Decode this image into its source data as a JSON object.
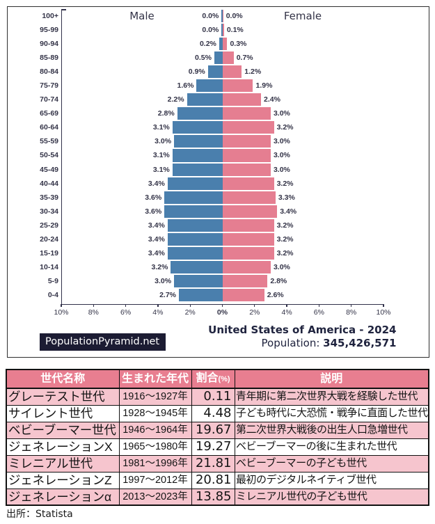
{
  "chart_data": {
    "type": "bar",
    "subtype": "population-pyramid",
    "title": "United States of America - 2024",
    "population_label": "Population: ",
    "population_value": "345,426,571",
    "brand": "PopulationPyramid.net",
    "left_header": "Male",
    "right_header": "Female",
    "categories": [
      "100+",
      "95-99",
      "90-94",
      "85-89",
      "80-84",
      "75-79",
      "70-74",
      "65-69",
      "60-64",
      "55-59",
      "50-54",
      "45-49",
      "40-44",
      "35-39",
      "30-34",
      "25-29",
      "20-24",
      "15-19",
      "10-14",
      "5-9",
      "0-4"
    ],
    "series": [
      {
        "name": "Male",
        "color": "#4A7FAD",
        "values": [
          0.0,
          0.0,
          0.2,
          0.5,
          0.9,
          1.6,
          2.2,
          2.8,
          3.1,
          3.0,
          3.1,
          3.1,
          3.4,
          3.6,
          3.6,
          3.4,
          3.4,
          3.4,
          3.2,
          3.0,
          2.7
        ]
      },
      {
        "name": "Female",
        "color": "#E57E91",
        "values": [
          0.0,
          0.1,
          0.3,
          0.7,
          1.2,
          1.9,
          2.4,
          3.0,
          3.2,
          3.0,
          3.0,
          3.0,
          3.2,
          3.3,
          3.4,
          3.2,
          3.2,
          3.2,
          3.0,
          2.8,
          2.6
        ]
      }
    ],
    "x_ticks": [
      "10%",
      "8%",
      "6%",
      "4%",
      "2%",
      "0%",
      "2%",
      "4%",
      "6%",
      "8%",
      "10%"
    ],
    "x_tick_values": [
      -10,
      -8,
      -6,
      -4,
      -2,
      0,
      2,
      4,
      6,
      8,
      10
    ],
    "xlim": [
      -10,
      10
    ],
    "value_suffix": "%"
  },
  "table": {
    "headers": [
      "世代名称",
      "生まれた年代",
      "割合",
      "説明"
    ],
    "ratio_unit": "(%)",
    "rows": [
      {
        "name": "グレーテスト世代",
        "years": "1916～1927年",
        "ratio": "0.11",
        "desc": "青年期に第二次世界大戦を経験した世代"
      },
      {
        "name": "サイレント世代",
        "years": "1928～1945年",
        "ratio": "4.48",
        "desc": "子ども時代に大恐慌・戦争に直面した世代"
      },
      {
        "name": "ベビーブーマー世代",
        "years": "1946～1964年",
        "ratio": "19.67",
        "desc": "第二次世界大戦後の出生人口急増世代"
      },
      {
        "name": "ジェネレーションX",
        "years": "1965～1980年",
        "ratio": "19.27",
        "desc": "ベビーブーマーの後に生まれた世代"
      },
      {
        "name": "ミレニアル世代",
        "years": "1981～1996年",
        "ratio": "21.81",
        "desc": "ベビーブーマーの子ども世代"
      },
      {
        "name": "ジェネレーションZ",
        "years": "1997～2012年",
        "ratio": "20.81",
        "desc": "最初のデジタルネイティブ世代"
      },
      {
        "name": "ジェネレーションα",
        "years": "2013～2023年",
        "ratio": "13.85",
        "desc": "ミレニアル世代の子ども世代"
      }
    ]
  },
  "source_note": "出所：Statista"
}
